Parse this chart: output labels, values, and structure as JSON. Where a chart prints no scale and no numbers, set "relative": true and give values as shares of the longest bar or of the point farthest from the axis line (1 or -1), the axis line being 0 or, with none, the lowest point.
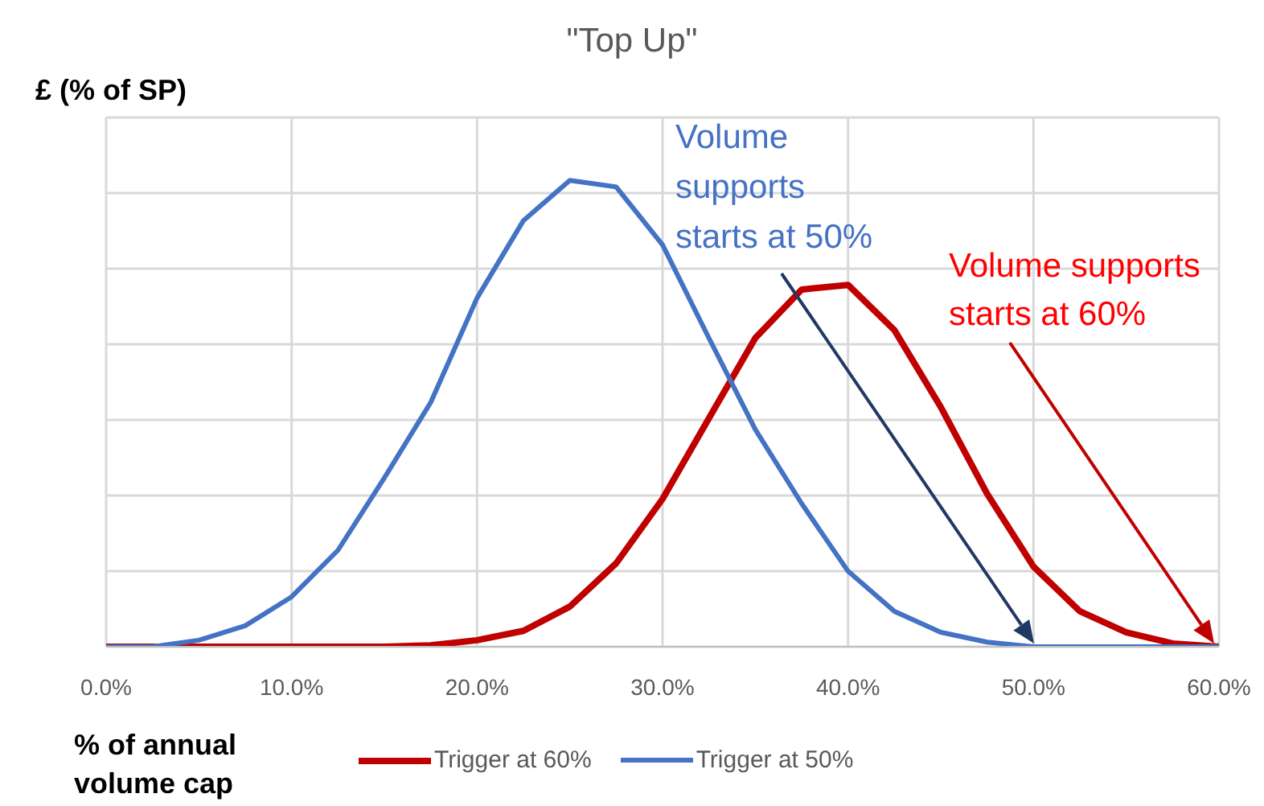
{
  "chart_data": {
    "type": "line",
    "title": "\"Top Up\"",
    "xlabel": "% of annual volume cap",
    "ylabel": "£ (% of SP)",
    "relative": true,
    "grid": true,
    "legend": "bottom",
    "marker": "none",
    "line_style": "solid",
    "x": [
      0,
      2.5,
      5,
      7.5,
      10,
      12.5,
      15,
      17.5,
      20,
      22.5,
      25,
      27.5,
      30,
      32.5,
      35,
      37.5,
      40,
      42.5,
      45,
      47.5,
      50,
      52.5,
      55,
      57.5,
      60
    ],
    "xlim": [
      0,
      60
    ],
    "xticks": [
      {
        "value": 0,
        "label": "0.0%"
      },
      {
        "value": 10,
        "label": "10.0%"
      },
      {
        "value": 20,
        "label": "20.0%"
      },
      {
        "value": 30,
        "label": "30.0%"
      },
      {
        "value": 40,
        "label": "40.0%"
      },
      {
        "value": 50,
        "label": "50.0%"
      },
      {
        "value": 60,
        "label": "60.0%"
      }
    ],
    "series": [
      {
        "name": "Trigger at 60%",
        "color": "#c00000",
        "values": [
          0,
          0,
          0,
          0,
          0,
          0,
          0,
          0.003,
          0.014,
          0.034,
          0.086,
          0.179,
          0.317,
          0.49,
          0.662,
          0.766,
          0.776,
          0.679,
          0.514,
          0.328,
          0.172,
          0.076,
          0.031,
          0.007,
          0
        ]
      },
      {
        "name": "Trigger at 50%",
        "color": "#4472c4",
        "values": [
          0,
          0,
          0.014,
          0.045,
          0.107,
          0.207,
          0.362,
          0.524,
          0.748,
          0.914,
          1,
          0.986,
          0.862,
          0.662,
          0.466,
          0.307,
          0.162,
          0.076,
          0.031,
          0.01,
          0,
          0,
          0,
          0,
          0
        ]
      }
    ],
    "annotations": [
      "Volume supports starts at 50%",
      "Volume supports starts at 60%"
    ]
  }
}
